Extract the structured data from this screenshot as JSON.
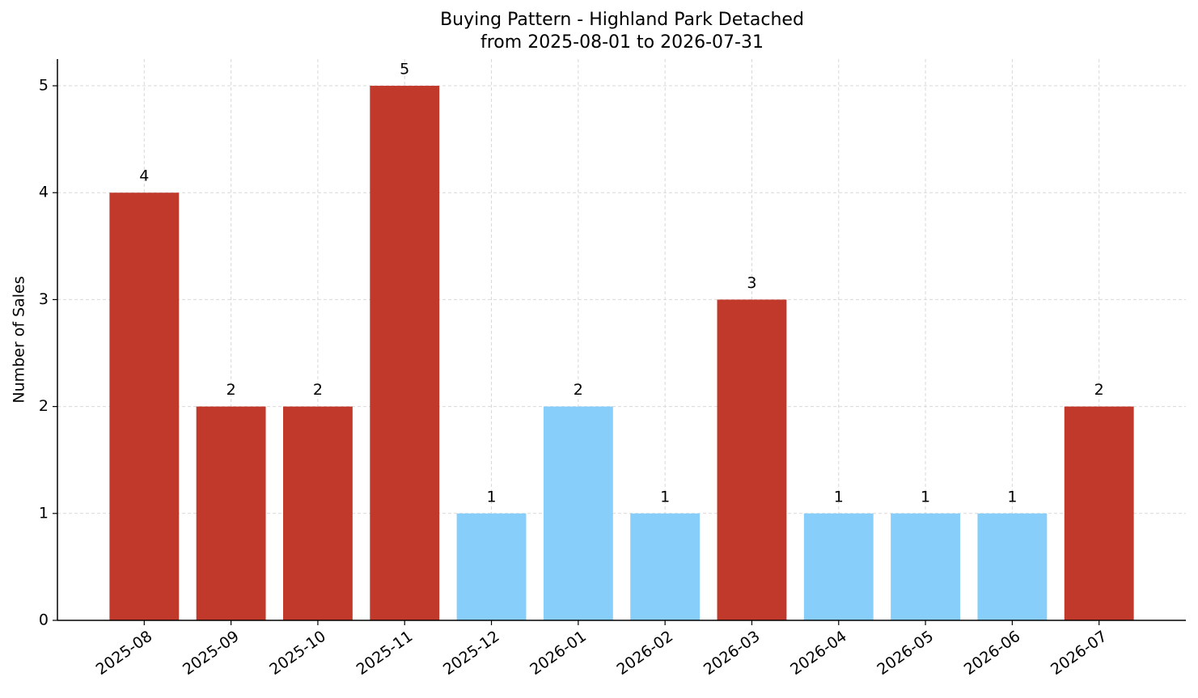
{
  "chart_data": {
    "type": "bar",
    "title": "Buying Pattern - Highland Park Detached",
    "subtitle": "from 2025-08-01 to 2026-07-31",
    "y_label": "Number of Sales",
    "categories": [
      "2025-08",
      "2025-09",
      "2025-10",
      "2025-11",
      "2025-12",
      "2026-01",
      "2026-02",
      "2026-03",
      "2026-04",
      "2026-05",
      "2026-06",
      "2026-07"
    ],
    "values": [
      4,
      2,
      2,
      5,
      1,
      2,
      1,
      3,
      1,
      1,
      1,
      2
    ],
    "colors": [
      "#c0392b",
      "#c0392b",
      "#c0392b",
      "#c0392b",
      "#87cefa",
      "#87cefa",
      "#87cefa",
      "#c0392b",
      "#87cefa",
      "#87cefa",
      "#87cefa",
      "#c0392b"
    ],
    "ylim": [
      0,
      5.25
    ],
    "yticks": [
      0,
      1,
      2,
      3,
      4,
      5
    ],
    "grid": true
  }
}
